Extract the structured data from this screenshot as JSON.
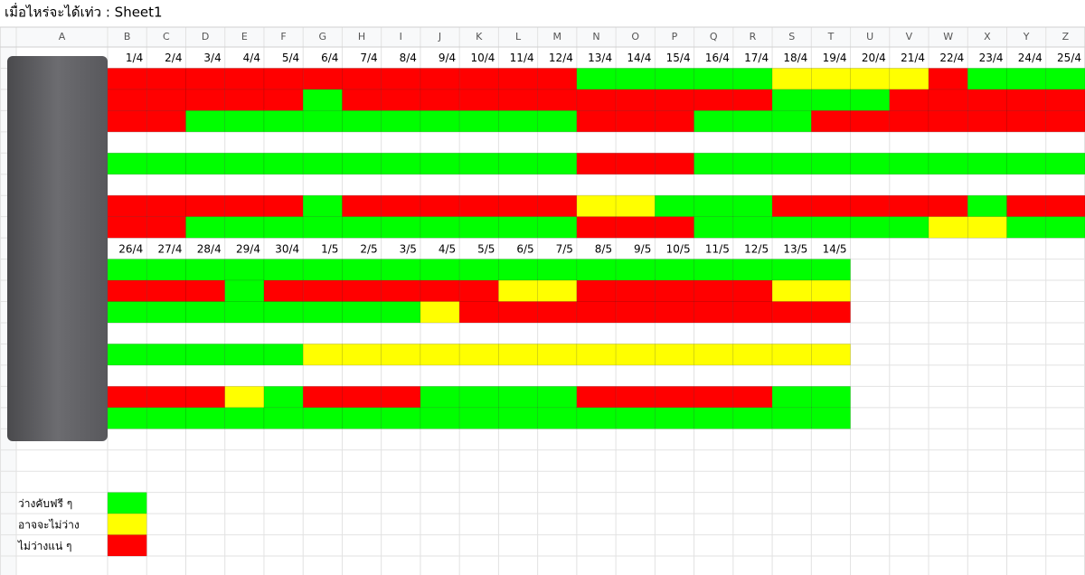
{
  "title": "เมื่อไหร่จะได้เท่ว : Sheet1",
  "columns": [
    "A",
    "B",
    "C",
    "D",
    "E",
    "F",
    "G",
    "H",
    "I",
    "J",
    "K",
    "L",
    "M",
    "N",
    "O",
    "P",
    "Q",
    "R",
    "S",
    "T",
    "U",
    "V",
    "W",
    "X",
    "Y",
    "Z"
  ],
  "palette": {
    "g": "#00ff00",
    "y": "#ffff00",
    "r": "#ff0000"
  },
  "blocks": [
    {
      "dates": [
        "1/4",
        "2/4",
        "3/4",
        "4/4",
        "5/4",
        "6/4",
        "7/4",
        "8/4",
        "9/4",
        "10/4",
        "11/4",
        "12/4",
        "13/4",
        "14/4",
        "15/4",
        "16/4",
        "17/4",
        "18/4",
        "19/4",
        "20/4",
        "21/4",
        "22/4",
        "23/4",
        "24/4",
        "25/4"
      ],
      "rows": [
        "rrrrrrrrrrrrgggggyyyyrggg",
        "rrrrrgrrrrrrrrrrrgggrrrrr",
        "rrggggggggggrrrgggrrrrrrr",
        null,
        "ggggggggggggrrrgggggggggg",
        null,
        "rrrrrgrrrrrryygggrrrrrgrr",
        "rrggggggggggrrrggggggyygg"
      ]
    },
    {
      "dates": [
        "26/4",
        "27/4",
        "28/4",
        "29/4",
        "30/4",
        "1/5",
        "2/5",
        "3/5",
        "4/5",
        "5/5",
        "6/5",
        "7/5",
        "8/5",
        "9/5",
        "10/5",
        "11/5",
        "12/5",
        "13/5",
        "14/5"
      ],
      "rows": [
        "ggggggggggggggggggg",
        "rrrgrrrrrryyrrrrryy",
        "ggggggggyrrrrrrrrrr",
        null,
        "gggggyyyyyyyyyyyyyy",
        null,
        "rrrygrrrggggrrrrrgg",
        "ggggggggggggggggggg"
      ]
    }
  ],
  "legend": [
    {
      "label": "ว่างคับฟรี ๆ",
      "status": "g"
    },
    {
      "label": "อาจจะไม่ว่าง",
      "status": "y"
    },
    {
      "label": "ไม่ว่างแน่ ๆ",
      "status": "r"
    }
  ]
}
